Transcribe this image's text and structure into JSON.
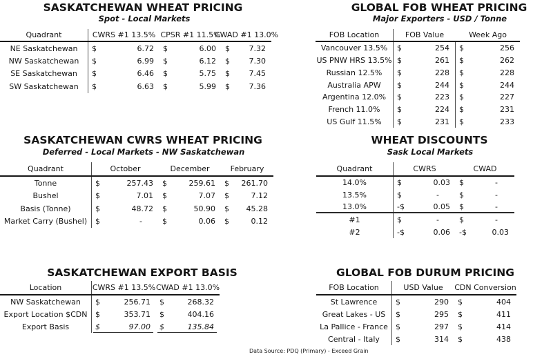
{
  "footer": {
    "text": "Data Source: PDQ (Primary) - Exceed Grain"
  },
  "colors": {
    "text": "#151515",
    "rule": "#161616",
    "separator": "#4d4d4d",
    "background": "#ffffff"
  },
  "tables": {
    "spot": {
      "title": "SASKATCHEWAN WHEAT PRICING",
      "subtitle": "Spot - Local Markets",
      "label_header": "Quadrant",
      "columns": [
        "CWRS #1 13.5%",
        "CPSR #1 11.5%",
        "CWAD #1 13.0%"
      ],
      "rows": [
        {
          "label": "NE Saskatchewan",
          "cells": [
            {
              "cur": "$",
              "val": "6.72"
            },
            {
              "cur": "$",
              "val": "6.00"
            },
            {
              "cur": "$",
              "val": "7.32"
            }
          ]
        },
        {
          "label": "NW Saskatchewan",
          "cells": [
            {
              "cur": "$",
              "val": "6.99"
            },
            {
              "cur": "$",
              "val": "6.12"
            },
            {
              "cur": "$",
              "val": "7.30"
            }
          ]
        },
        {
          "label": "SE Saskatchewan",
          "cells": [
            {
              "cur": "$",
              "val": "6.46"
            },
            {
              "cur": "$",
              "val": "5.75"
            },
            {
              "cur": "$",
              "val": "7.45"
            }
          ]
        },
        {
          "label": "SW Saskatchewan",
          "cells": [
            {
              "cur": "$",
              "val": "6.63"
            },
            {
              "cur": "$",
              "val": "5.99"
            },
            {
              "cur": "$",
              "val": "7.36"
            }
          ]
        }
      ]
    },
    "fob_wheat": {
      "title": "GLOBAL FOB WHEAT PRICING",
      "subtitle": "Major Exporters - USD / Tonne",
      "label_header": "FOB Location",
      "columns": [
        "FOB Value",
        "Week Ago"
      ],
      "rows": [
        {
          "label": "Vancouver 13.5%",
          "cells": [
            {
              "cur": "$",
              "val": "254"
            },
            {
              "cur": "$",
              "val": "256"
            }
          ]
        },
        {
          "label": "US PNW HRS 13.5%",
          "cells": [
            {
              "cur": "$",
              "val": "261"
            },
            {
              "cur": "$",
              "val": "262"
            }
          ]
        },
        {
          "label": "Russian 12.5%",
          "cells": [
            {
              "cur": "$",
              "val": "228"
            },
            {
              "cur": "$",
              "val": "228"
            }
          ]
        },
        {
          "label": "Australia APW",
          "cells": [
            {
              "cur": "$",
              "val": "244"
            },
            {
              "cur": "$",
              "val": "244"
            }
          ]
        },
        {
          "label": "Argentina 12.0%",
          "cells": [
            {
              "cur": "$",
              "val": "223"
            },
            {
              "cur": "$",
              "val": "227"
            }
          ]
        },
        {
          "label": "French 11.0%",
          "cells": [
            {
              "cur": "$",
              "val": "224"
            },
            {
              "cur": "$",
              "val": "231"
            }
          ]
        },
        {
          "label": "US Gulf 11.5%",
          "cells": [
            {
              "cur": "$",
              "val": "231"
            },
            {
              "cur": "$",
              "val": "233"
            }
          ]
        }
      ]
    },
    "deferred": {
      "title": "SASKATCHEWAN CWRS WHEAT PRICING",
      "subtitle": "Deferred - Local Markets - NW Saskatchewan",
      "label_header": "Quadrant",
      "columns": [
        "October",
        "December",
        "February"
      ],
      "rows": [
        {
          "label": "Tonne",
          "cells": [
            {
              "cur": "$",
              "val": "257.43"
            },
            {
              "cur": "$",
              "val": "259.61"
            },
            {
              "cur": "$",
              "val": "261.70"
            }
          ]
        },
        {
          "label": "Bushel",
          "cells": [
            {
              "cur": "$",
              "val": "7.01"
            },
            {
              "cur": "$",
              "val": "7.07"
            },
            {
              "cur": "$",
              "val": "7.12"
            }
          ]
        },
        {
          "label": "Basis (Tonne)",
          "cells": [
            {
              "cur": "$",
              "val": "48.72"
            },
            {
              "cur": "$",
              "val": "50.90"
            },
            {
              "cur": "$",
              "val": "45.28"
            }
          ]
        },
        {
          "label": "Market Carry (Bushel)",
          "cells": [
            {
              "cur": "$",
              "val": "-"
            },
            {
              "cur": "$",
              "val": "0.06"
            },
            {
              "cur": "$",
              "val": "0.12"
            }
          ]
        }
      ]
    },
    "discounts": {
      "title": "WHEAT DISCOUNTS",
      "subtitle": "Sask Local Markets",
      "label_header": "Quadrant",
      "columns": [
        "CWRS",
        "CWAD"
      ],
      "rows": [
        {
          "label": "14.0%",
          "cells": [
            {
              "cur": "$",
              "val": "0.03"
            },
            {
              "cur": "$",
              "val": "-"
            }
          ]
        },
        {
          "label": "13.5%",
          "cells": [
            {
              "cur": "$",
              "val": "-"
            },
            {
              "cur": "$",
              "val": "-"
            }
          ]
        },
        {
          "label": "13.0%",
          "cells": [
            {
              "cur": "-$",
              "val": "0.05"
            },
            {
              "cur": "$",
              "val": "-"
            }
          ],
          "divider_after": true
        },
        {
          "label": "#1",
          "cells": [
            {
              "cur": "$",
              "val": "-"
            },
            {
              "cur": "$",
              "val": "-"
            }
          ]
        },
        {
          "label": "#2",
          "cells": [
            {
              "cur": "-$",
              "val": "0.06"
            },
            {
              "cur": "-$",
              "val": "0.03"
            }
          ]
        }
      ]
    },
    "export_basis": {
      "title": "SASKATCHEWAN EXPORT BASIS",
      "label_header": "Location",
      "columns": [
        "CWRS #1 13.5%",
        "CWAD #1 13.0%"
      ],
      "rows": [
        {
          "label": "NW Saskatchewan",
          "cells": [
            {
              "cur": "$",
              "val": "256.71"
            },
            {
              "cur": "$",
              "val": "268.32"
            }
          ]
        },
        {
          "label": "Export Location $CDN",
          "cells": [
            {
              "cur": "$",
              "val": "353.71"
            },
            {
              "cur": "$",
              "val": "404.16"
            }
          ]
        },
        {
          "label": "Export Basis",
          "cells": [
            {
              "cur": "$",
              "val": "97.00"
            },
            {
              "cur": "$",
              "val": "135.84"
            }
          ],
          "total": true
        }
      ]
    },
    "fob_durum": {
      "title": "GLOBAL FOB DURUM PRICING",
      "label_header": "FOB Location",
      "columns": [
        "USD Value",
        "CDN Conversion"
      ],
      "rows": [
        {
          "label": "St Lawrence",
          "cells": [
            {
              "cur": "$",
              "val": "290"
            },
            {
              "cur": "$",
              "val": "404"
            }
          ]
        },
        {
          "label": "Great Lakes - US",
          "cells": [
            {
              "cur": "$",
              "val": "295"
            },
            {
              "cur": "$",
              "val": "411"
            }
          ]
        },
        {
          "label": "La Pallice - France",
          "cells": [
            {
              "cur": "$",
              "val": "297"
            },
            {
              "cur": "$",
              "val": "414"
            }
          ]
        },
        {
          "label": "Central - Italy",
          "cells": [
            {
              "cur": "$",
              "val": "314"
            },
            {
              "cur": "$",
              "val": "438"
            }
          ]
        }
      ]
    }
  }
}
